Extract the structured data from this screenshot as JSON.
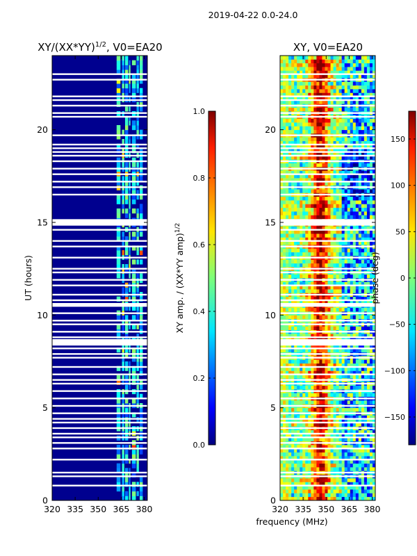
{
  "figure_title": "2019-04-22 0.0-24.0",
  "chart_data": [
    {
      "type": "heatmap",
      "title": "XY/(XX*YY)",
      "title_sup": "1/2",
      "title_suffix": ", V0=EA20",
      "xlabel": "",
      "ylabel": "UT (hours)",
      "xlim": [
        320,
        382
      ],
      "ylim": [
        0,
        24
      ],
      "xticks": [
        320,
        335,
        350,
        365,
        380
      ],
      "yticks": [
        0,
        5,
        10,
        15,
        20
      ],
      "colorbar": {
        "label": "XY amp. / (XX*YY amp)",
        "label_sup": "1/2",
        "range": [
          0.0,
          1.0
        ],
        "ticks": [
          "0.0",
          "0.2",
          "0.4",
          "0.6",
          "0.8",
          "1.0"
        ],
        "tick_values": [
          0.0,
          0.2,
          0.4,
          0.6,
          0.8,
          1.0
        ]
      },
      "colormap": "jet",
      "background_value": 0.05,
      "active_band_mhz": [
        360,
        380
      ]
    },
    {
      "type": "heatmap",
      "title": "XY, V0=EA20",
      "xlabel": "frequency (MHz)",
      "ylabel": "",
      "xlim": [
        320,
        382
      ],
      "ylim": [
        0,
        24
      ],
      "xticks": [
        320,
        335,
        350,
        365,
        380
      ],
      "yticks": [
        0,
        5,
        10,
        15,
        20
      ],
      "colorbar": {
        "label": "phase (deg)",
        "range": [
          -180,
          180
        ],
        "ticks": [
          "150",
          "100",
          "50",
          "0",
          "−50",
          "−100",
          "−150"
        ],
        "tick_values": [
          150,
          100,
          50,
          0,
          -50,
          -100,
          -150
        ]
      },
      "colormap": "jet"
    }
  ],
  "flagged_hours": [
    23.0,
    22.7,
    21.8,
    21.6,
    21.3,
    20.9,
    20.7,
    19.7,
    19.2,
    19.0,
    18.8,
    18.6,
    18.3,
    17.9,
    17.6,
    17.2,
    16.9,
    16.5,
    15.1,
    14.9,
    14.6,
    14.0,
    13.7,
    13.1,
    12.5,
    12.3,
    11.9,
    11.6,
    11.1,
    10.8,
    10.5,
    10.1,
    9.7,
    9.5,
    9.1,
    8.8,
    8.6,
    8.4,
    8.2,
    7.9,
    7.7,
    7.2,
    6.8,
    6.5,
    6.3,
    5.9,
    5.5,
    5.1,
    4.7,
    4.4,
    4.2,
    3.9,
    3.6,
    3.4,
    3.1,
    2.8,
    2.2,
    1.5,
    1.3,
    0.8
  ]
}
